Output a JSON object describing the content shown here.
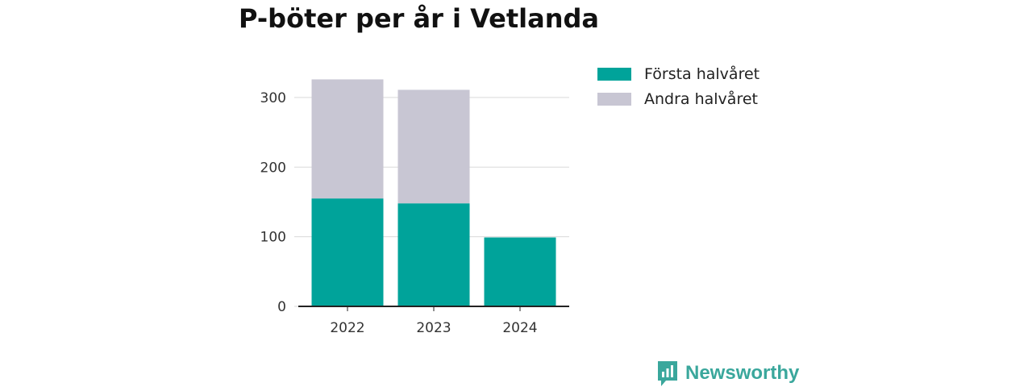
{
  "page": {
    "title": "P-böter per år i Vetlanda",
    "brand": "Newsworthy"
  },
  "colors": {
    "first_half": "#00a39a",
    "second_half": "#c8c6d3",
    "grid": "#d9d9d9",
    "axis": "#222222",
    "brand": "#3aa79c"
  },
  "icons": {
    "brand_logo": "newsworthy-logo-icon"
  },
  "chart_data": {
    "type": "bar",
    "stacked": true,
    "title": "P-böter per år i Vetlanda",
    "xlabel": "",
    "ylabel": "",
    "categories": [
      "2022",
      "2023",
      "2024"
    ],
    "series": [
      {
        "name": "Första halvåret",
        "values": [
          155,
          148,
          99
        ]
      },
      {
        "name": "Andra halvåret",
        "values": [
          171,
          163,
          0
        ]
      }
    ],
    "ylim": [
      0,
      330
    ],
    "yticks": [
      0,
      100,
      200,
      300
    ],
    "grid": true,
    "legend_position": "top-right"
  }
}
